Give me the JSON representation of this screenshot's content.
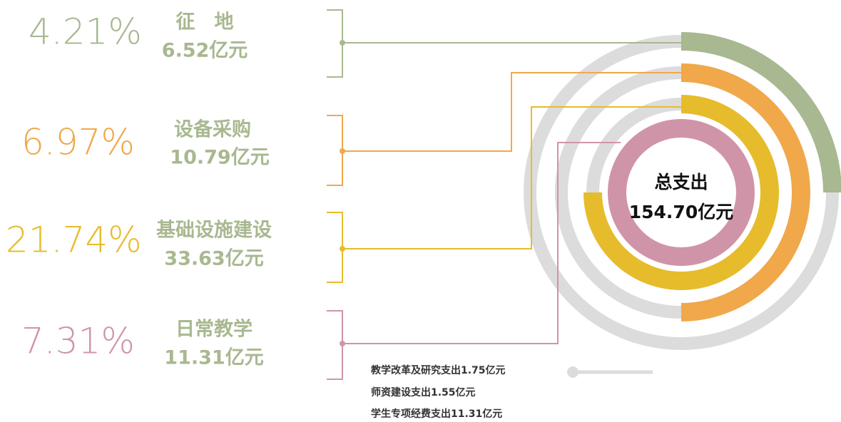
{
  "total": {
    "label": "总支出",
    "amount": "154.70亿元"
  },
  "items": [
    {
      "percent": "4.21%",
      "name": "征　地",
      "amount": "6.52亿元"
    },
    {
      "percent": "6.97%",
      "name": "设备采购",
      "amount": "10.79亿元"
    },
    {
      "percent": "21.74%",
      "name": "基础设施建设",
      "amount": "33.63亿元"
    },
    {
      "percent": "7.31%",
      "name": "日常教学",
      "amount": "11.31亿元"
    }
  ],
  "notes": [
    "教学改革及研究支出1.75亿元",
    "师资建设支出1.55亿元",
    "学生专项经费支出11.31亿元"
  ]
}
